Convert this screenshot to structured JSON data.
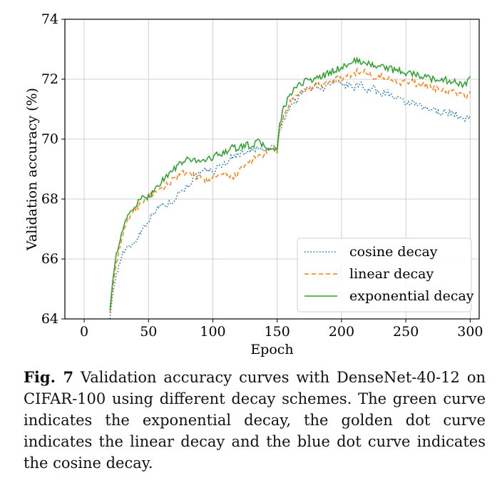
{
  "chart_data": {
    "type": "line",
    "xlabel": "Epoch",
    "ylabel": "Validation accuracy (%)",
    "xlim": [
      -15,
      307
    ],
    "ylim": [
      64,
      74
    ],
    "xticks": [
      0,
      50,
      100,
      150,
      200,
      250,
      300
    ],
    "yticks": [
      64,
      66,
      68,
      70,
      72,
      74
    ],
    "grid": true,
    "legend_position": "bottom-right",
    "series": [
      {
        "name": "cosine decay",
        "color": "#1f77b4",
        "style": "dotted",
        "x": [
          20,
          22,
          25,
          30,
          35,
          40,
          45,
          50,
          55,
          60,
          65,
          70,
          75,
          80,
          85,
          90,
          95,
          100,
          105,
          110,
          115,
          120,
          125,
          130,
          135,
          140,
          145,
          148,
          150,
          152,
          155,
          160,
          165,
          170,
          175,
          180,
          185,
          190,
          195,
          200,
          205,
          210,
          215,
          220,
          225,
          230,
          235,
          240,
          245,
          250,
          255,
          260,
          265,
          270,
          275,
          280,
          285,
          290,
          295,
          298,
          300
        ],
        "y": [
          64.0,
          64.8,
          65.5,
          66.2,
          66.4,
          66.6,
          67.0,
          67.3,
          67.6,
          67.8,
          67.8,
          68.0,
          68.3,
          68.4,
          68.7,
          68.8,
          69.0,
          68.9,
          69.1,
          69.2,
          69.4,
          69.5,
          69.6,
          69.6,
          69.7,
          69.6,
          69.7,
          69.8,
          69.6,
          70.2,
          70.7,
          71.1,
          71.3,
          71.6,
          71.7,
          71.8,
          71.7,
          71.8,
          71.9,
          71.8,
          71.8,
          71.7,
          71.9,
          71.6,
          71.7,
          71.5,
          71.6,
          71.4,
          71.3,
          71.2,
          71.2,
          71.1,
          71.0,
          71.0,
          70.9,
          70.9,
          70.9,
          70.8,
          70.6,
          70.7,
          70.8
        ]
      },
      {
        "name": "linear decay",
        "color": "#ff7f0e",
        "style": "dashed",
        "x": [
          20,
          22,
          25,
          30,
          35,
          40,
          45,
          50,
          55,
          60,
          65,
          70,
          75,
          80,
          85,
          90,
          95,
          100,
          105,
          110,
          115,
          120,
          125,
          130,
          135,
          140,
          145,
          148,
          150,
          152,
          155,
          160,
          165,
          170,
          175,
          180,
          185,
          190,
          195,
          200,
          205,
          210,
          215,
          220,
          225,
          230,
          235,
          240,
          245,
          250,
          255,
          260,
          265,
          270,
          275,
          280,
          285,
          290,
          295,
          298,
          300
        ],
        "y": [
          64.2,
          65.0,
          65.9,
          66.8,
          67.4,
          67.7,
          67.9,
          68.1,
          68.2,
          68.3,
          68.5,
          68.7,
          68.9,
          68.8,
          68.8,
          68.7,
          68.6,
          68.7,
          68.8,
          68.8,
          68.7,
          68.9,
          69.1,
          69.3,
          69.4,
          69.5,
          69.6,
          69.7,
          69.6,
          70.3,
          70.8,
          71.2,
          71.4,
          71.6,
          71.7,
          71.8,
          71.8,
          71.9,
          72.0,
          72.0,
          72.1,
          72.2,
          72.3,
          72.2,
          72.1,
          72.1,
          72.0,
          72.0,
          71.9,
          71.9,
          71.9,
          71.8,
          71.8,
          71.7,
          71.7,
          71.6,
          71.6,
          71.5,
          71.5,
          71.4,
          71.6
        ]
      },
      {
        "name": "exponential decay",
        "color": "#2ca02c",
        "style": "solid",
        "x": [
          20,
          22,
          25,
          30,
          35,
          40,
          45,
          50,
          55,
          60,
          65,
          70,
          75,
          80,
          85,
          90,
          95,
          100,
          105,
          110,
          115,
          120,
          125,
          130,
          135,
          140,
          145,
          148,
          150,
          152,
          155,
          160,
          165,
          170,
          175,
          180,
          185,
          190,
          195,
          200,
          205,
          210,
          215,
          220,
          225,
          230,
          235,
          240,
          245,
          250,
          255,
          260,
          265,
          270,
          275,
          280,
          285,
          290,
          295,
          298,
          300
        ],
        "y": [
          64.3,
          65.2,
          66.2,
          67.0,
          67.5,
          67.8,
          68.0,
          68.1,
          68.3,
          68.6,
          68.8,
          69.0,
          69.2,
          69.3,
          69.3,
          69.3,
          69.3,
          69.4,
          69.5,
          69.6,
          69.7,
          69.7,
          69.8,
          69.8,
          69.9,
          69.8,
          69.6,
          69.7,
          69.6,
          70.5,
          71.0,
          71.5,
          71.7,
          71.9,
          72.0,
          72.0,
          72.1,
          72.2,
          72.3,
          72.4,
          72.5,
          72.6,
          72.6,
          72.5,
          72.5,
          72.4,
          72.4,
          72.3,
          72.3,
          72.2,
          72.2,
          72.1,
          72.1,
          72.0,
          72.0,
          72.0,
          71.9,
          71.9,
          71.8,
          71.9,
          72.1
        ]
      }
    ]
  },
  "caption": {
    "label": "Fig. 7",
    "text": " Validation accuracy curves with DenseNet-40-12 on CIFAR-100 using different decay schemes. The green curve indicates the exponential decay, the golden dot curve indicates the linear decay and the blue dot curve indicates the cosine decay."
  }
}
